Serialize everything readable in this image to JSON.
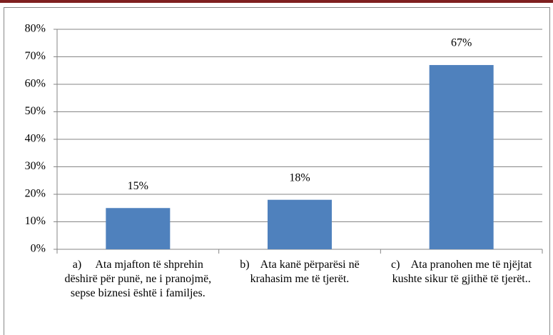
{
  "chart_data": {
    "type": "bar",
    "categories": [
      "a)     Ata mjafton të shprehin dëshirë për punë, ne i pranojmë, sepse biznesi është i familjes.",
      "b)    Ata kanë përparësi në krahasim me të tjerët.",
      "c)    Ata pranohen me të njëjtat kushte sikur të gjithë të tjerët.."
    ],
    "values": [
      15,
      18,
      67
    ],
    "value_labels": [
      "15%",
      "18%",
      "67%"
    ],
    "color": "#4f81bd",
    "ylim": [
      0,
      80
    ],
    "yticks": [
      {
        "value": 0,
        "label": "0%"
      },
      {
        "value": 10,
        "label": "10%"
      },
      {
        "value": 20,
        "label": "20%"
      },
      {
        "value": 30,
        "label": "30%"
      },
      {
        "value": 40,
        "label": "40%"
      },
      {
        "value": 50,
        "label": "50%"
      },
      {
        "value": 60,
        "label": "60%"
      },
      {
        "value": 70,
        "label": "70%"
      },
      {
        "value": 80,
        "label": "80%"
      }
    ],
    "grid": true
  }
}
